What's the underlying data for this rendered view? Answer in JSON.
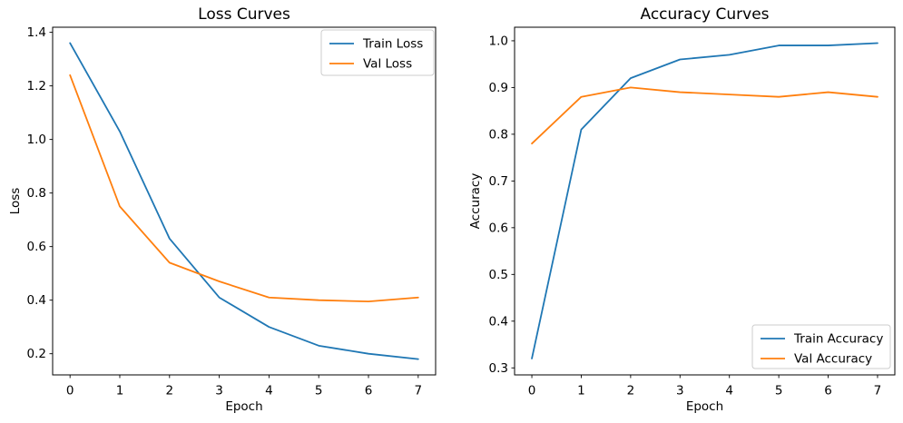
{
  "figure": {
    "background_color": "#ffffff",
    "text_color": "#000000",
    "series_colors": {
      "train": "#1f77b4",
      "val": "#ff7f0e"
    }
  },
  "chart_data": [
    {
      "type": "line",
      "title": "Loss Curves",
      "xlabel": "Epoch",
      "ylabel": "Loss",
      "x": [
        0,
        1,
        2,
        3,
        4,
        5,
        6,
        7
      ],
      "xtick_labels": [
        "0",
        "1",
        "2",
        "3",
        "4",
        "5",
        "6",
        "7"
      ],
      "ytick_labels": [
        "0.2",
        "0.4",
        "0.6",
        "0.8",
        "1.0",
        "1.2",
        "1.4"
      ],
      "xlim": [
        -0.35,
        7.35
      ],
      "ylim": [
        0.121,
        1.419
      ],
      "grid": false,
      "legend_position": "upper right",
      "series": [
        {
          "name": "Train Loss",
          "color": "#1f77b4",
          "values": [
            1.36,
            1.03,
            0.63,
            0.41,
            0.3,
            0.23,
            0.2,
            0.18
          ]
        },
        {
          "name": "Val Loss",
          "color": "#ff7f0e",
          "values": [
            1.24,
            0.75,
            0.54,
            0.47,
            0.41,
            0.4,
            0.395,
            0.41
          ]
        }
      ]
    },
    {
      "type": "line",
      "title": "Accuracy Curves",
      "xlabel": "Epoch",
      "ylabel": "Accuracy",
      "x": [
        0,
        1,
        2,
        3,
        4,
        5,
        6,
        7
      ],
      "xtick_labels": [
        "0",
        "1",
        "2",
        "3",
        "4",
        "5",
        "6",
        "7"
      ],
      "ytick_labels": [
        "0.3",
        "0.4",
        "0.5",
        "0.6",
        "0.7",
        "0.8",
        "0.9",
        "1.0"
      ],
      "xlim": [
        -0.35,
        7.35
      ],
      "ylim": [
        0.285,
        1.029
      ],
      "grid": false,
      "legend_position": "lower right",
      "series": [
        {
          "name": "Train Accuracy",
          "color": "#1f77b4",
          "values": [
            0.32,
            0.81,
            0.92,
            0.96,
            0.97,
            0.99,
            0.99,
            0.995
          ]
        },
        {
          "name": "Val Accuracy",
          "color": "#ff7f0e",
          "values": [
            0.78,
            0.88,
            0.9,
            0.89,
            0.885,
            0.88,
            0.89,
            0.88
          ]
        }
      ]
    }
  ]
}
